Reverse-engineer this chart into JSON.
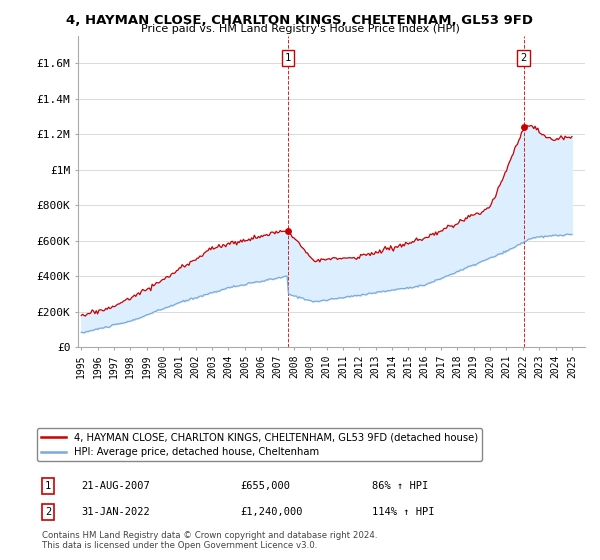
{
  "title": "4, HAYMAN CLOSE, CHARLTON KINGS, CHELTENHAM, GL53 9FD",
  "subtitle": "Price paid vs. HM Land Registry's House Price Index (HPI)",
  "property_label": "4, HAYMAN CLOSE, CHARLTON KINGS, CHELTENHAM, GL53 9FD (detached house)",
  "hpi_label": "HPI: Average price, detached house, Cheltenham",
  "property_color": "#cc0000",
  "hpi_color": "#7aaadd",
  "fill_color": "#ddeeff",
  "sale1_date": "21-AUG-2007",
  "sale1_price": "£655,000",
  "sale1_hpi": "86% ↑ HPI",
  "sale2_date": "31-JAN-2022",
  "sale2_price": "£1,240,000",
  "sale2_hpi": "114% ↑ HPI",
  "ylabel_ticks": [
    "£0",
    "£200K",
    "£400K",
    "£600K",
    "£800K",
    "£1M",
    "£1.2M",
    "£1.4M",
    "£1.6M"
  ],
  "ylabel_values": [
    0,
    200000,
    400000,
    600000,
    800000,
    1000000,
    1200000,
    1400000,
    1600000
  ],
  "ylim": [
    0,
    1750000
  ],
  "xlim_start": 1994.8,
  "xlim_end": 2025.8,
  "footnote": "Contains HM Land Registry data © Crown copyright and database right 2024.\nThis data is licensed under the Open Government Licence v3.0.",
  "background_color": "#ffffff",
  "grid_color": "#cccccc"
}
